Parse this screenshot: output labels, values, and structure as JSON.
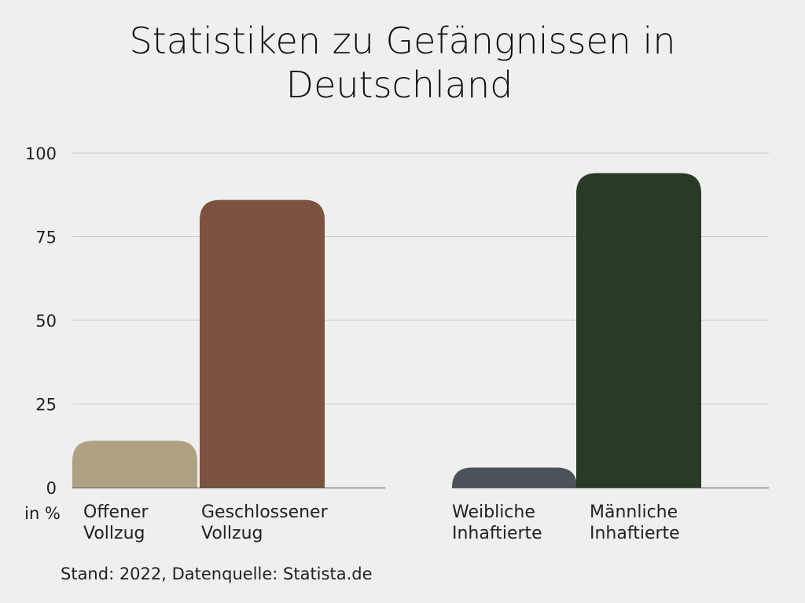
{
  "chart_data": {
    "type": "bar",
    "title_lines": [
      "Statistiken zu Gefängnissen in",
      "Deutschland"
    ],
    "categories": [
      "Offener Vollzug",
      "Geschlossener Vollzug",
      "Weibliche Inhaftierte",
      "Männliche Inhaftierte"
    ],
    "category_lines": [
      [
        "Offener",
        "Vollzug"
      ],
      [
        "Geschlossener",
        "Vollzug"
      ],
      [
        "Weibliche",
        "Inhaftierte"
      ],
      [
        "Männliche",
        "Inhaftierte"
      ]
    ],
    "groups": [
      {
        "categories": [
          "Offener Vollzug",
          "Geschlossener Vollzug"
        ]
      },
      {
        "categories": [
          "Weibliche Inhaftierte",
          "Männliche Inhaftierte"
        ]
      }
    ],
    "values": [
      14,
      86,
      6,
      94
    ],
    "colors": [
      "#b1a184",
      "#7b5240",
      "#4a525a",
      "#293a28"
    ],
    "ylim": [
      0,
      100
    ],
    "yticks": [
      "0",
      "25",
      "50",
      "75",
      "100"
    ],
    "ylabel": "in %",
    "grid": true,
    "source": "Stand: 2022, Datenquelle: Statista.de"
  }
}
